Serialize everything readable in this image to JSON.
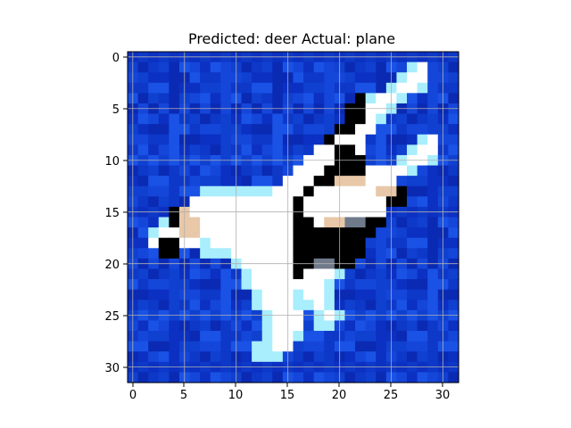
{
  "title": "Predicted: deer Actual: plane",
  "image": {
    "description_name": "misclassified-plane-thumbnail",
    "grid": "on",
    "x_ticks": [
      "0",
      "5",
      "10",
      "15",
      "20",
      "25",
      "30"
    ],
    "y_ticks": [
      "0",
      "5",
      "10",
      "15",
      "20",
      "25",
      "30"
    ]
  },
  "palette": {
    "sky_deep": "#0a2fc0",
    "sky_mid": "#1446d8",
    "sky_light": "#1f5ff0",
    "plane_white": "#ffffff",
    "plane_cyan": "#a8eefc",
    "shadow": "#000000",
    "tan": "#e8c8a8",
    "grid": "#b0b0b0"
  }
}
